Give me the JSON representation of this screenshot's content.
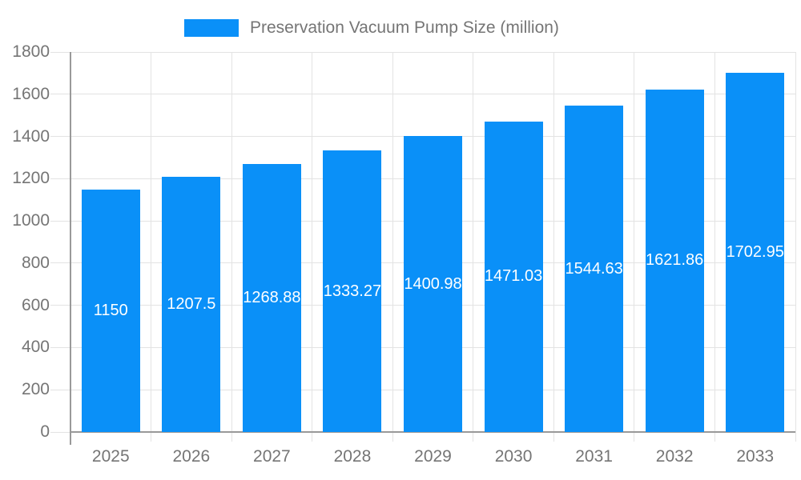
{
  "legend": {
    "label": "Preservation Vacuum Pump Size (million)"
  },
  "chart_data": {
    "type": "bar",
    "title": "Preservation Vacuum Pump Size (million)",
    "categories": [
      "2025",
      "2026",
      "2027",
      "2028",
      "2029",
      "2030",
      "2031",
      "2032",
      "2033"
    ],
    "values": [
      1150,
      1207.5,
      1268.88,
      1333.27,
      1400.98,
      1471.03,
      1544.63,
      1621.86,
      1702.95
    ],
    "series": [
      {
        "name": "Preservation Vacuum Pump Size (million)",
        "values": [
          1150,
          1207.5,
          1268.88,
          1333.27,
          1400.98,
          1471.03,
          1544.63,
          1621.86,
          1702.95
        ]
      }
    ],
    "xlabel": "",
    "ylabel": "",
    "ylim": [
      0,
      1800
    ],
    "yticks": [
      0,
      200,
      400,
      600,
      800,
      1000,
      1200,
      1400,
      1600,
      1800
    ],
    "grid": true,
    "legend_position": "top",
    "value_label_position": "inside-center"
  },
  "colors": {
    "bar": "#0A90F8",
    "grid_line": "#E3E3E3",
    "axis_line": "#999999",
    "axis_text": "#757575",
    "bar_label": "#FFFFFF",
    "background": "#FFFFFF"
  }
}
